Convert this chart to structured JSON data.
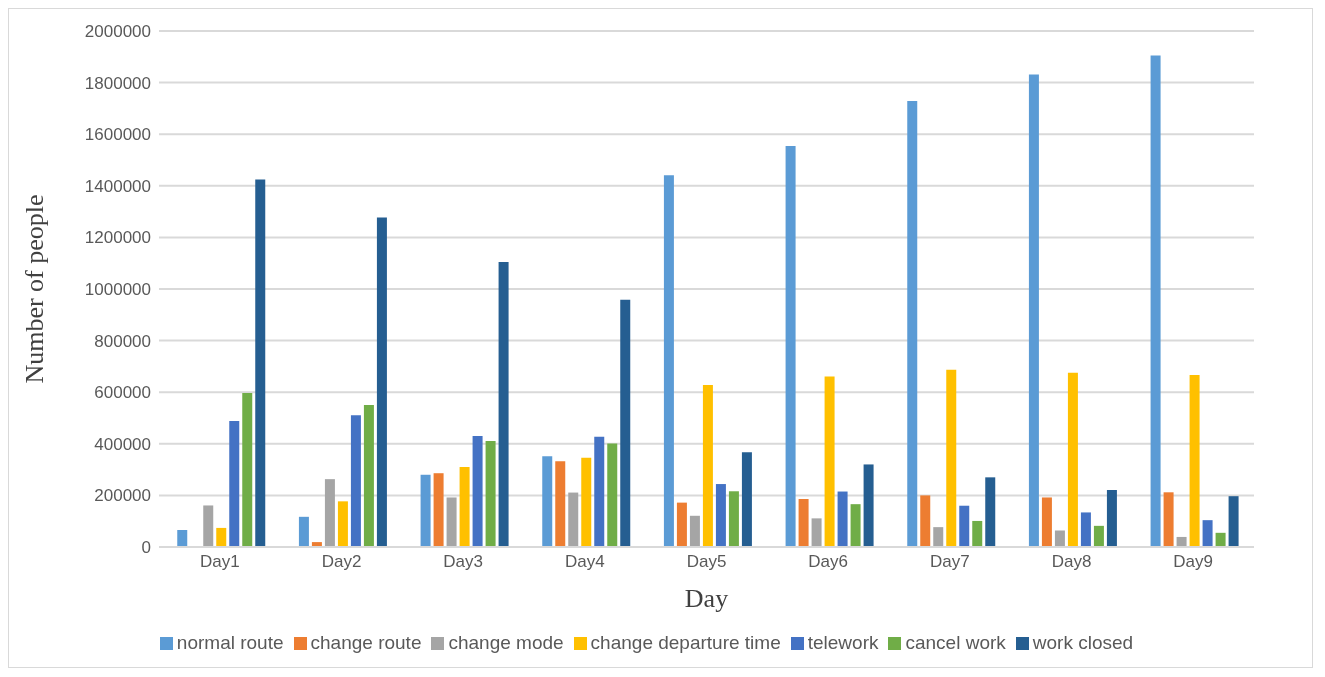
{
  "chart_data": {
    "type": "bar",
    "xlabel": "Day",
    "ylabel": "Number of people",
    "categories": [
      "Day1",
      "Day2",
      "Day3",
      "Day4",
      "Day5",
      "Day6",
      "Day7",
      "Day8",
      "Day9"
    ],
    "series": [
      {
        "name": "normal route",
        "color": "#5b9bd5",
        "values": [
          66000,
          117000,
          280000,
          352000,
          1441000,
          1554000,
          1729000,
          1831000,
          1905000
        ]
      },
      {
        "name": "change route",
        "color": "#ed7d31",
        "values": [
          0,
          19000,
          286000,
          332000,
          172000,
          186000,
          200000,
          192000,
          212000
        ]
      },
      {
        "name": "change mode",
        "color": "#a5a5a5",
        "values": [
          161000,
          263000,
          192000,
          211000,
          121000,
          111000,
          77000,
          64000,
          39000
        ]
      },
      {
        "name": "change departure time",
        "color": "#ffc000",
        "values": [
          74000,
          177000,
          310000,
          346000,
          628000,
          661000,
          687000,
          675000,
          667000
        ]
      },
      {
        "name": "telework",
        "color": "#4472c4",
        "values": [
          488000,
          511000,
          430000,
          427000,
          244000,
          215000,
          160000,
          134000,
          104000
        ]
      },
      {
        "name": "cancel work",
        "color": "#70ad47",
        "values": [
          597000,
          550000,
          411000,
          401000,
          216000,
          166000,
          101000,
          82000,
          55000
        ]
      },
      {
        "name": "work closed",
        "color": "#255e91",
        "values": [
          1424000,
          1277000,
          1105000,
          958000,
          367000,
          320000,
          270000,
          221000,
          197000
        ]
      }
    ],
    "ylim": [
      0,
      2000000
    ],
    "yticks": [
      0,
      200000,
      400000,
      600000,
      800000,
      1000000,
      1200000,
      1400000,
      1600000,
      1800000,
      2000000
    ],
    "grid": "y",
    "legend": "bottom"
  }
}
